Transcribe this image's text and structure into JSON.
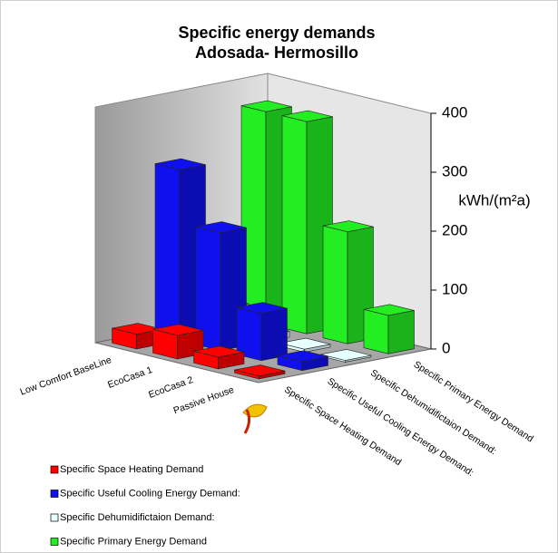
{
  "chart_data": {
    "type": "bar3d",
    "title": "Specific energy demands",
    "subtitle": "Adosada- Hermosillo",
    "y_label": "kWh/(m²a)",
    "categories": [
      "Low Comfort BaseLine",
      "EcoCasa 1",
      "EcoCasa 2",
      "Passive House"
    ],
    "series": [
      {
        "name": "Specific Space Heating Demand",
        "color": "#ff0000",
        "values": [
          25,
          40,
          20,
          5
        ]
      },
      {
        "name": "Specific Useful Cooling Energy Demand:",
        "color": "#1010ee",
        "values": [
          290,
          200,
          80,
          15
        ]
      },
      {
        "name": "Specific Dehumidifictaion Demand:",
        "color": "#e6ffff",
        "values": [
          40,
          10,
          5,
          3
        ]
      },
      {
        "name": "Specific Primary Energy Demand",
        "color": "#22ee22",
        "values": [
          360,
          360,
          190,
          65
        ]
      }
    ],
    "ylim": [
      0,
      400
    ],
    "yticks": [
      0,
      100,
      200,
      300,
      400
    ],
    "grid": false
  }
}
